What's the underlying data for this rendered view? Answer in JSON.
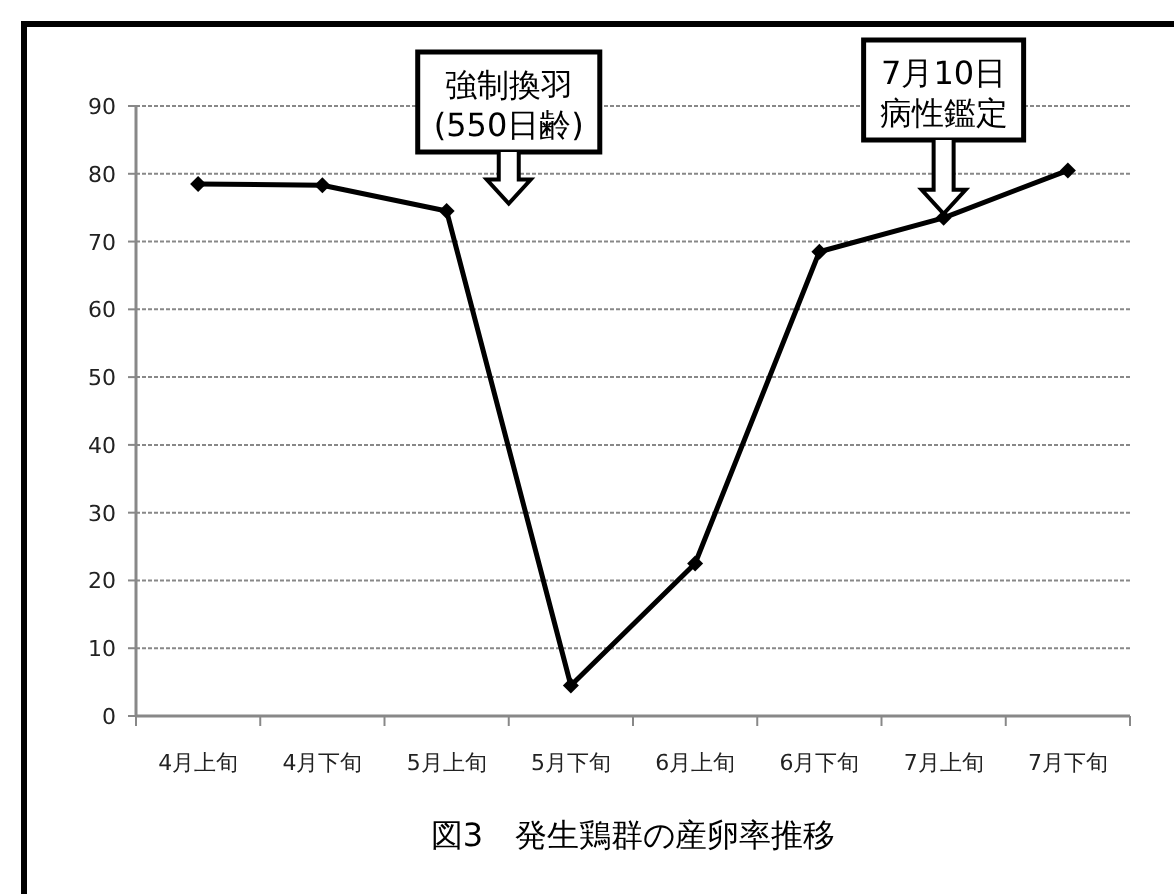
{
  "chart_data": {
    "type": "line",
    "title": "図3　発生鶏群の産卵率推移",
    "categories": [
      "4月上旬",
      "4月下旬",
      "5月上旬",
      "5月下旬",
      "6月上旬",
      "6月下旬",
      "7月上旬",
      "7月下旬"
    ],
    "series": [
      {
        "color": "#000000",
        "values": [
          78.5,
          78.3,
          74.5,
          4.5,
          22.5,
          68.5,
          73.5,
          80.5
        ]
      }
    ],
    "ylim": [
      0,
      90
    ],
    "yticks": [
      0,
      10,
      20,
      30,
      40,
      50,
      60,
      70,
      80,
      90
    ],
    "grid": "y",
    "marker": "diamond",
    "line_style": "solid",
    "annotations": [
      "強制換羽(550日齢)",
      {
        "text": "7月10日病性鑑定",
        "x": "7月上旬",
        "y": 73.5
      }
    ]
  }
}
